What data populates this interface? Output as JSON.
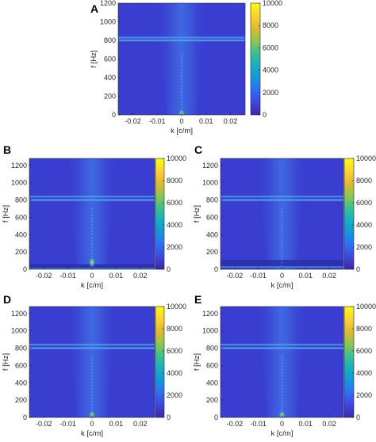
{
  "chart_data": [
    {
      "panel": "A",
      "type": "heatmap",
      "xlabel": "k [c/m]",
      "ylabel": "f [Hz]",
      "xlim": [
        -0.026,
        0.026
      ],
      "ylim": [
        0,
        1200
      ],
      "xticks": [
        "-0.02",
        "-0.01",
        "0",
        "0.01",
        "0.02"
      ],
      "yticks": [
        "0",
        "200",
        "400",
        "600",
        "800",
        "1000",
        "1200"
      ],
      "colorbar": {
        "range": [
          0,
          10000
        ],
        "ticks": [
          "0",
          "2000",
          "4000",
          "6000",
          "8000",
          "10000"
        ]
      },
      "features": {
        "line_freqs_hz": [
          800,
          830
        ],
        "low_freq_band_hz": null,
        "bright_spot_hz": [
          0,
          40
        ]
      }
    },
    {
      "panel": "B",
      "type": "heatmap",
      "xlabel": "k [c/m]",
      "ylabel": "f [Hz]",
      "xlim": [
        -0.026,
        0.026
      ],
      "ylim": [
        0,
        1280
      ],
      "xticks": [
        "-0.02",
        "-0.01",
        "0",
        "0.01",
        "0.02"
      ],
      "yticks": [
        "0",
        "200",
        "400",
        "600",
        "800",
        "1000",
        "1200"
      ],
      "colorbar": {
        "range": [
          0,
          10000
        ],
        "ticks": [
          "0",
          "2000",
          "4000",
          "6000",
          "8000",
          "10000"
        ]
      },
      "features": {
        "line_freqs_hz": [
          800,
          840
        ],
        "low_freq_band_hz": [
          0,
          60
        ],
        "bright_spot_hz": [
          40,
          120
        ]
      }
    },
    {
      "panel": "C",
      "type": "heatmap",
      "xlabel": "k [c/m]",
      "ylabel": "f [Hz]",
      "xlim": [
        -0.026,
        0.026
      ],
      "ylim": [
        0,
        1280
      ],
      "xticks": [
        "-0.02",
        "-0.01",
        "0",
        "0.01",
        "0.02"
      ],
      "yticks": [
        "0",
        "200",
        "400",
        "600",
        "800",
        "1000",
        "1200"
      ],
      "colorbar": {
        "range": [
          0,
          10000
        ],
        "ticks": [
          "0",
          "2000",
          "4000",
          "6000",
          "8000",
          "10000"
        ]
      },
      "features": {
        "line_freqs_hz": [
          800,
          840
        ],
        "low_freq_band_hz": [
          20,
          110
        ],
        "bright_spot_hz": null
      }
    },
    {
      "panel": "D",
      "type": "heatmap",
      "xlabel": "k [c/m]",
      "ylabel": "f [Hz]",
      "xlim": [
        -0.026,
        0.026
      ],
      "ylim": [
        0,
        1280
      ],
      "xticks": [
        "-0.02",
        "-0.01",
        "0",
        "0.01",
        "0.02"
      ],
      "yticks": [
        "0",
        "200",
        "400",
        "600",
        "800",
        "1000",
        "1200"
      ],
      "colorbar": {
        "range": [
          0,
          10000
        ],
        "ticks": [
          "0",
          "2000",
          "4000",
          "6000",
          "8000",
          "10000"
        ]
      },
      "features": {
        "line_freqs_hz": [
          800,
          840
        ],
        "low_freq_band_hz": null,
        "bright_spot_hz": [
          0,
          60
        ]
      }
    },
    {
      "panel": "E",
      "type": "heatmap",
      "xlabel": "k [c/m]",
      "ylabel": "f [Hz]",
      "xlim": [
        -0.026,
        0.026
      ],
      "ylim": [
        0,
        1280
      ],
      "xticks": [
        "-0.02",
        "-0.01",
        "0",
        "0.01",
        "0.02"
      ],
      "yticks": [
        "0",
        "200",
        "400",
        "600",
        "800",
        "1000",
        "1200"
      ],
      "colorbar": {
        "range": [
          0,
          10000
        ],
        "ticks": [
          "0",
          "2000",
          "4000",
          "6000",
          "8000",
          "10000"
        ]
      },
      "features": {
        "line_freqs_hz": [
          800,
          840
        ],
        "low_freq_band_hz": null,
        "bright_spot_hz": [
          0,
          60
        ]
      }
    }
  ],
  "colors": {
    "background": "#3a3ed0",
    "cone": "#3f6fe6",
    "lines": "#4fa4e8",
    "spot": "#d8e03a",
    "colormap": [
      "#3e26a8",
      "#4145e0",
      "#2f6ef7",
      "#1496dc",
      "#16b0c2",
      "#3cc18e",
      "#91c551",
      "#e1b932",
      "#fbd334",
      "#f9fb0e"
    ]
  }
}
